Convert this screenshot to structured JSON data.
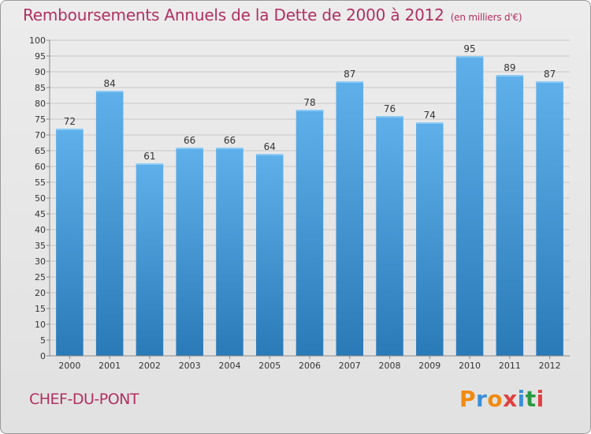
{
  "header": {
    "title": "Remboursements Annuels de la Dette de 2000 à 2012",
    "unit": "(en milliers d'€)"
  },
  "commune": "CHEF-DU-PONT",
  "logo": "Proxiti",
  "colors": {
    "title": "#b03060",
    "bar_light": "#5fb0ea",
    "bar_dark": "#2a7ab8"
  },
  "chart_data": {
    "type": "bar",
    "title": "Remboursements Annuels de la Dette de 2000 à 2012",
    "xlabel": "",
    "ylabel": "",
    "ylim": [
      0,
      100
    ],
    "ytick_step": 5,
    "grid": true,
    "categories": [
      "2000",
      "2001",
      "2002",
      "2003",
      "2004",
      "2005",
      "2006",
      "2007",
      "2008",
      "2009",
      "2010",
      "2011",
      "2012"
    ],
    "values": [
      72,
      84,
      61,
      66,
      66,
      64,
      78,
      87,
      76,
      74,
      95,
      89,
      87
    ]
  }
}
